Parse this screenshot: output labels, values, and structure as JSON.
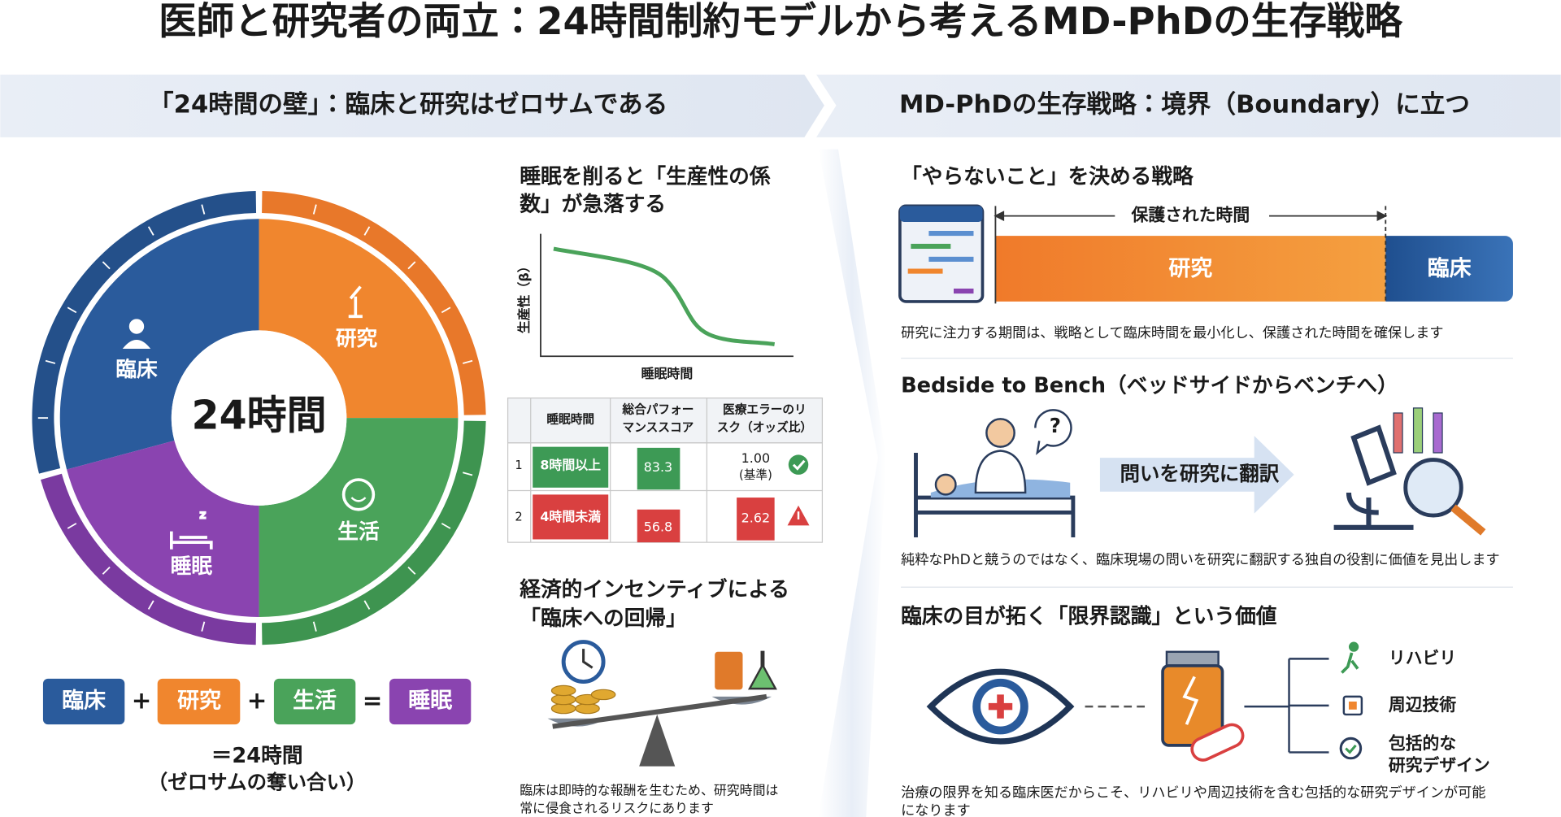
{
  "title": "医師と研究者の両立：24時間制約モデルから考えるMD-PhDの生存戦略",
  "left": {
    "banner": "「24時間の壁」：臨床と研究はゼロサムである",
    "donut": {
      "center": "24時間",
      "segments": [
        "臨床",
        "研究",
        "生活",
        "睡眠"
      ]
    },
    "equation": {
      "terms": [
        "臨床",
        "研究",
        "生活",
        "睡眠"
      ],
      "operators": [
        "+",
        "+",
        "="
      ],
      "result": [
        "＝24時間",
        "（ゼロサムの奪い合い）"
      ]
    },
    "sleep_chart": {
      "heading": [
        "睡眠を削ると「生産性の係",
        "数」が急落する"
      ],
      "y_label": "生産性（β）",
      "x_label": "睡眠時間"
    },
    "table": {
      "header": [
        [
          "睡眠時間"
        ],
        [
          "総合パフォー",
          "マンススコア"
        ],
        [
          "医療エラーのリ",
          "スク（オッズ比）"
        ]
      ],
      "rows": [
        {
          "index": "1",
          "sleep": "8時間以上",
          "score": "83.3",
          "risk": [
            "1.00",
            "(基準)"
          ]
        },
        {
          "index": "2",
          "sleep": "4時間未満",
          "score": "56.8",
          "risk": [
            "2.62"
          ]
        }
      ]
    },
    "incentive": {
      "heading": [
        "経済的インセンティブによる",
        "「臨床への回帰」"
      ],
      "caption": [
        "臨床は即時的な報酬を生むため、研究時間は",
        "常に侵食されるリスクにあります"
      ]
    }
  },
  "right": {
    "banner": "MD-PhDの生存戦略：境界（Boundary）に立つ",
    "strategy": {
      "heading": "「やらないこと」を決める戦略",
      "protected": "保護された時間",
      "research": "研究",
      "clinic": "臨床",
      "caption": "研究に注力する期間は、戦略として臨床時間を最小化し、保護された時間を確保します"
    },
    "bedside": {
      "heading": "Bedside to Bench（ベッドサイドからベンチへ）",
      "arrow": "問いを研究に翻訳",
      "caption": "純粋なPhDと競うのではなく、臨床現場の問いを研究に翻訳する独自の役割に価値を見出します"
    },
    "limits": {
      "heading": "臨床の目が拓く「限界認識」という価値",
      "items": [
        [
          "リハビリ"
        ],
        [
          "周辺技術"
        ],
        [
          "包括的な",
          "研究デザイン"
        ]
      ],
      "caption": [
        "治療の限界を知る臨床医だからこそ、リハビリや周辺技術を含む包括的な研究デザインが可能",
        "になります"
      ]
    }
  }
}
